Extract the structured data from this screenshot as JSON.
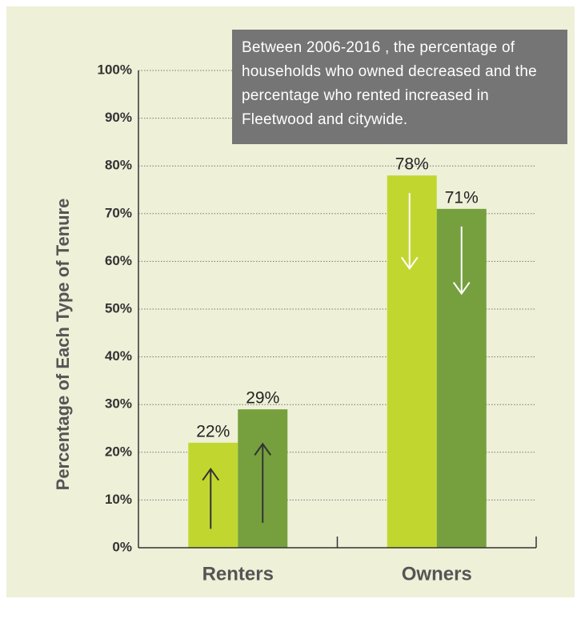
{
  "chart_data": {
    "type": "bar",
    "annotation": "Between 2006-2016 , the percentage of households who owned decreased and the percentage who rented increased in Fleetwood and citywide.",
    "y_label": "Percentage of Each Type of Tenure",
    "categories": [
      "Renters",
      "Owners"
    ],
    "series": [
      {
        "color": "#c1d72f",
        "values": [
          22,
          78
        ],
        "value_labels": [
          "22%",
          "78%"
        ]
      },
      {
        "color": "#76a03e",
        "values": [
          29,
          71
        ],
        "value_labels": [
          "29%",
          "71%"
        ]
      }
    ],
    "ylim": [
      0,
      100
    ],
    "yticks": [
      {
        "value": 0,
        "label": "0%"
      },
      {
        "value": 10,
        "label": "10%"
      },
      {
        "value": 20,
        "label": "20%"
      },
      {
        "value": 30,
        "label": "30%"
      },
      {
        "value": 40,
        "label": "40%"
      },
      {
        "value": 50,
        "label": "50%"
      },
      {
        "value": 60,
        "label": "60%"
      },
      {
        "value": 70,
        "label": "70%"
      },
      {
        "value": 80,
        "label": "80%"
      },
      {
        "value": 90,
        "label": "90%"
      },
      {
        "value": 100,
        "label": "100%"
      }
    ],
    "grid": true
  }
}
